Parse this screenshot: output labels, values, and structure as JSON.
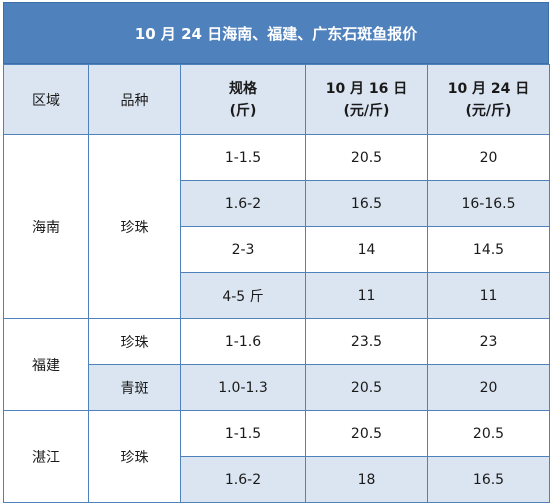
{
  "title": "10 月 24 日海南、福建、广东石斑鱼报价",
  "headers": {
    "region": "区域",
    "variety": "品种",
    "spec_line1": "规格",
    "spec_line2": "(斤)",
    "date1_line1": "10 月 16 日",
    "date1_line2": "(元/斤)",
    "date2_line1": "10 月 24 日",
    "date2_line2": "(元/斤)"
  },
  "groups": [
    {
      "region": "海南",
      "varieties": [
        {
          "name": "珍珠",
          "rows": [
            {
              "spec": "1-1.5",
              "price1": "20.5",
              "price2": "20"
            },
            {
              "spec": "1.6-2",
              "price1": "16.5",
              "price2": "16-16.5"
            },
            {
              "spec": "2-3",
              "price1": "14",
              "price2": "14.5"
            },
            {
              "spec": "4-5 斤",
              "price1": "11",
              "price2": "11"
            }
          ]
        }
      ]
    },
    {
      "region": "福建",
      "varieties": [
        {
          "name": "珍珠",
          "rows": [
            {
              "spec": "1-1.6",
              "price1": "23.5",
              "price2": "23"
            }
          ]
        },
        {
          "name": "青斑",
          "rows": [
            {
              "spec": "1.0-1.3",
              "price1": "20.5",
              "price2": "20"
            }
          ]
        }
      ]
    },
    {
      "region": "湛江",
      "varieties": [
        {
          "name": "珍珠",
          "rows": [
            {
              "spec": "1-1.5",
              "price1": "20.5",
              "price2": "20.5"
            },
            {
              "spec": "1.6-2",
              "price1": "18",
              "price2": "16.5"
            }
          ]
        }
      ]
    }
  ]
}
